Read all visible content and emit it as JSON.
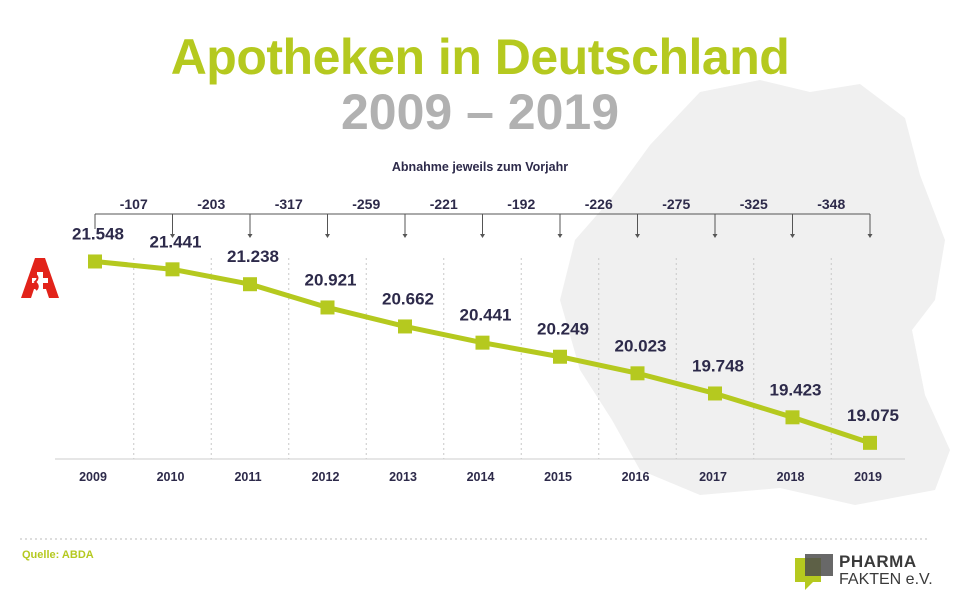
{
  "title": "Apotheken in Deutschland",
  "subtitle": "2009 – 2019",
  "decline_title": "Abnahme jeweils zum Vorjahr",
  "source": "Quelle: ABDA",
  "logo": {
    "line1": "PHARMA",
    "line2": "FAKTEN e.V."
  },
  "colors": {
    "line": "#b5c91f",
    "marker": "#b5c91f",
    "title": "#b5c91f",
    "subtitle": "#b1b1b1",
    "text": "#2d2a4a",
    "pharmacy_icon": "#e2231a",
    "map": "#f0f0f0"
  },
  "icons": [
    "pharmacy-a-icon",
    "germany-map-silhouette"
  ],
  "chart_data": {
    "type": "line",
    "categories": [
      "2009",
      "2010",
      "2011",
      "2012",
      "2013",
      "2014",
      "2015",
      "2016",
      "2017",
      "2018",
      "2019"
    ],
    "values": [
      21548,
      21441,
      21238,
      20921,
      20662,
      20441,
      20249,
      20023,
      19748,
      19423,
      19075
    ],
    "value_labels": [
      "21.548",
      "21.441",
      "21.238",
      "20.921",
      "20.662",
      "20.441",
      "20.249",
      "20.023",
      "19.748",
      "19.423",
      "19.075"
    ],
    "decline_labels": [
      "-107",
      "-203",
      "-317",
      "-259",
      "-221",
      "-192",
      "-226",
      "-275",
      "-325",
      "-348"
    ],
    "ylim": [
      18800,
      21800
    ],
    "grid": "vertical dotted",
    "legend": "none"
  }
}
